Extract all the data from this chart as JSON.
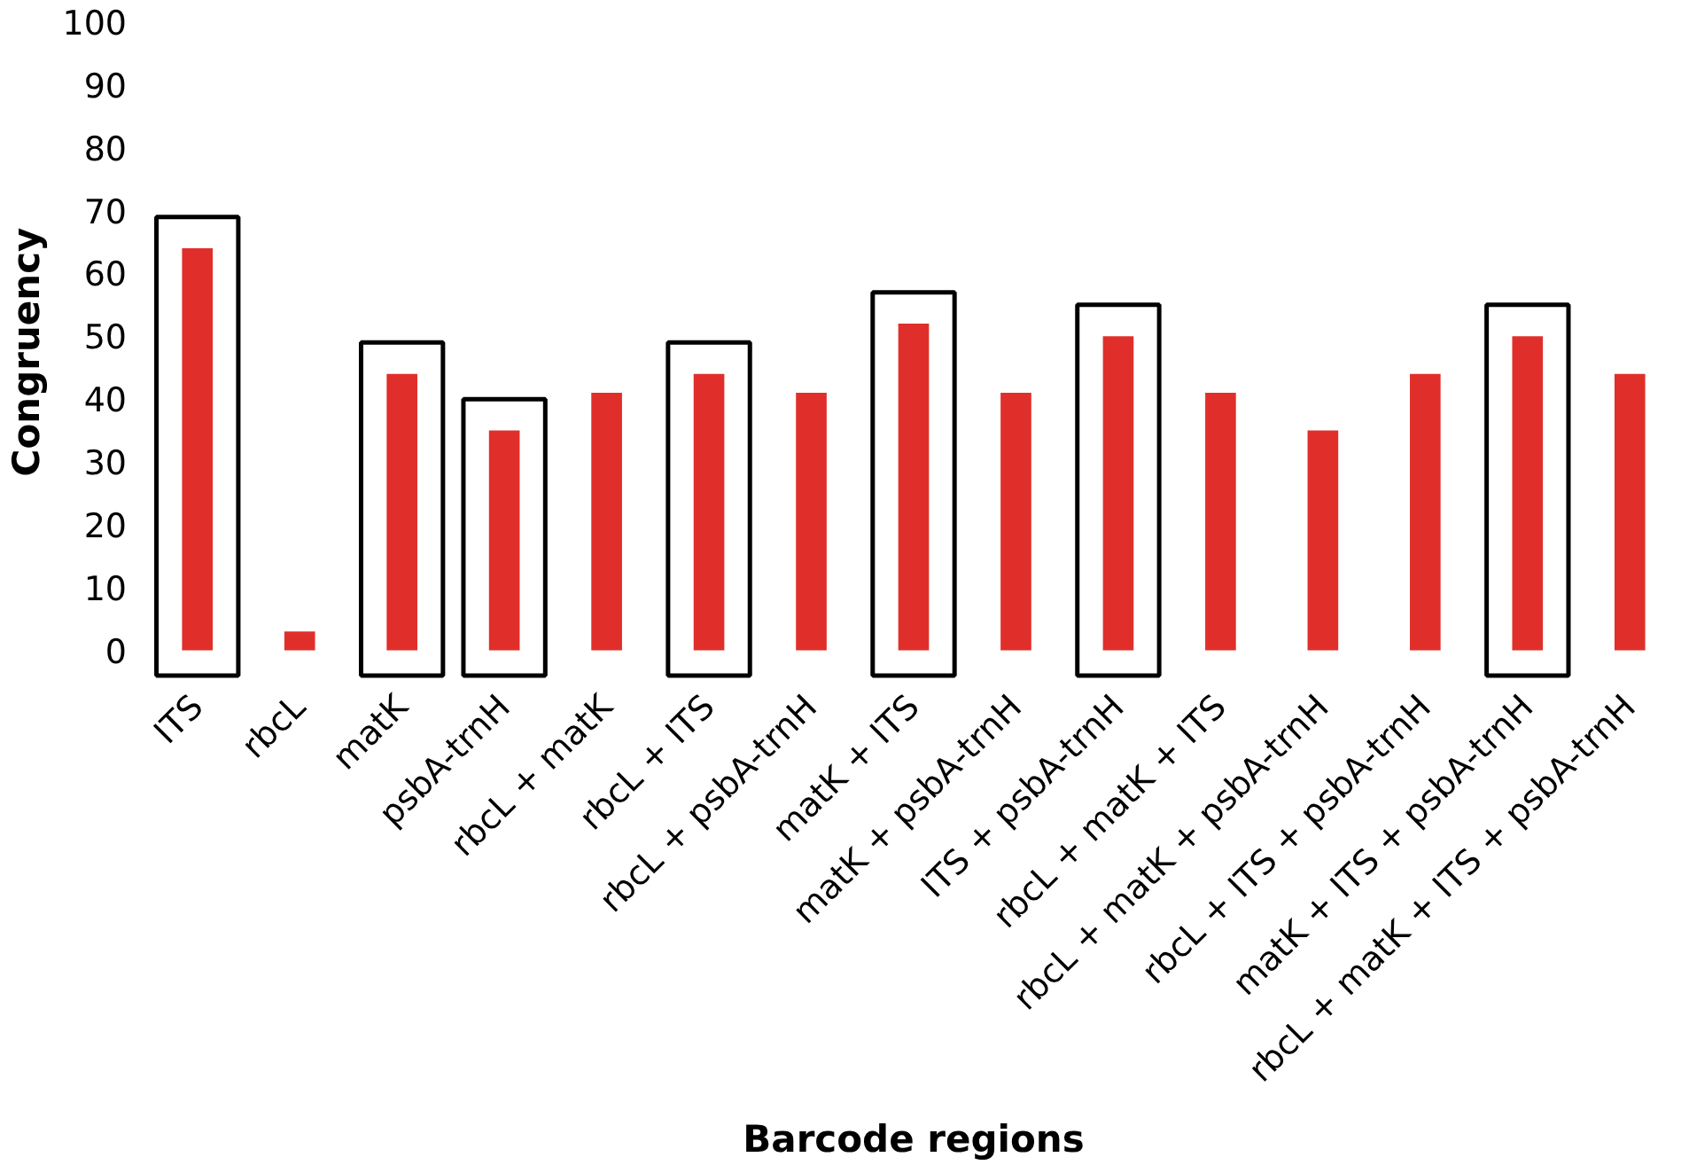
{
  "chart_data": {
    "type": "bar",
    "xlabel": "Barcode regions",
    "ylabel": "Congruency",
    "categories": [
      "ITS",
      "rbcL",
      "matK",
      "psbA-trnH",
      "rbcL + matK",
      "rbcL + ITS",
      "rbcL + psbA-trnH",
      "matK + ITS",
      "matK + psbA-trnH",
      "ITS + psbA-trnH",
      "rbcL + matK + ITS",
      "rbcL + matK + psbA-trnH",
      "rbcL + ITS + psbA-trnH",
      "matK + ITS + psbA-trnH",
      "rbcL + matK + ITS + psbA-trnH"
    ],
    "values": [
      64,
      3,
      44,
      35,
      41,
      44,
      41,
      52,
      41,
      50,
      41,
      35,
      44,
      50,
      44
    ],
    "color": "#e02f2a",
    "ylim": [
      -5,
      100
    ],
    "yticks": [
      0,
      10,
      20,
      30,
      40,
      50,
      60,
      70,
      80,
      90,
      100
    ],
    "grid": false
  }
}
